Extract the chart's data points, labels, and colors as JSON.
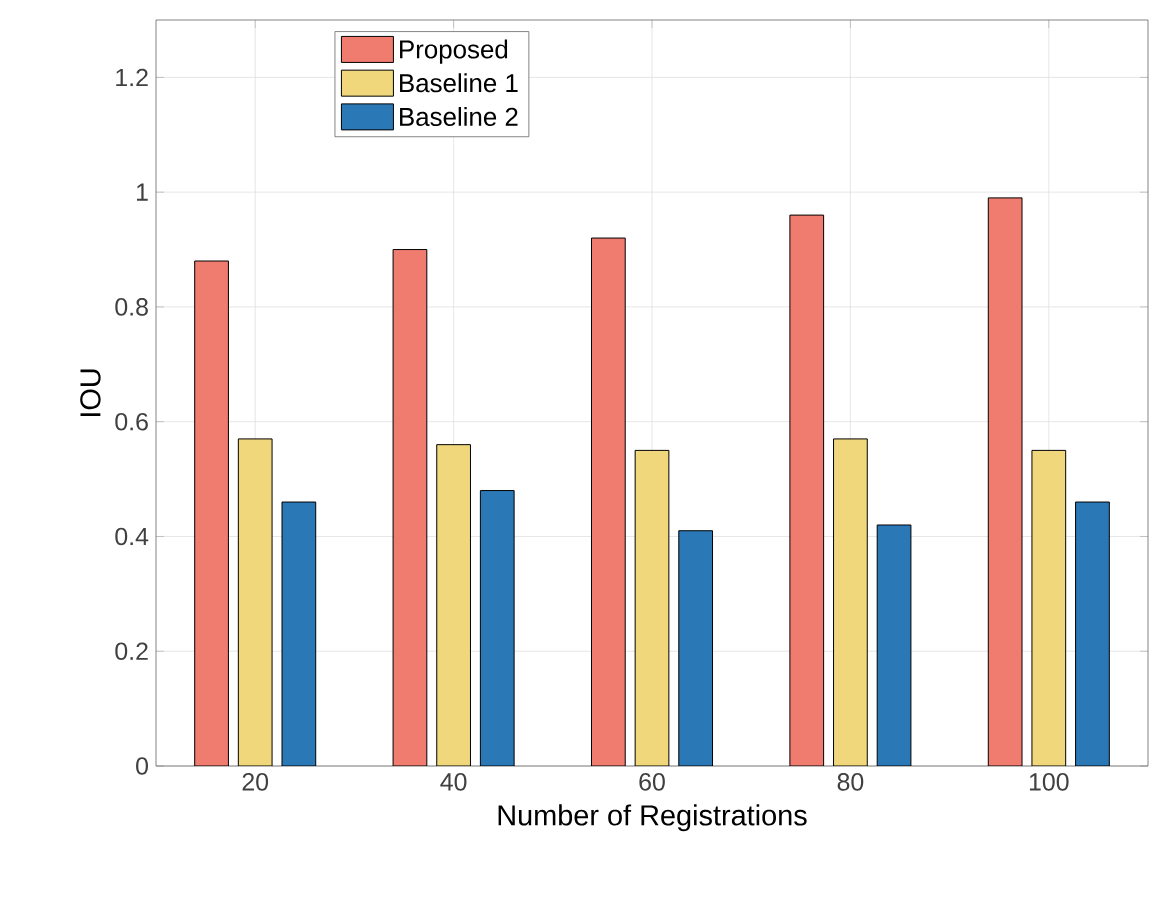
{
  "chart_data": {
    "type": "bar",
    "xlabel": "Number of Registrations",
    "ylabel": "IOU",
    "categories": [
      "20",
      "40",
      "60",
      "80",
      "100"
    ],
    "series": [
      {
        "name": "Proposed",
        "color": "#f07b6f",
        "values": [
          0.88,
          0.9,
          0.92,
          0.96,
          0.99
        ]
      },
      {
        "name": "Baseline 1",
        "color": "#f0d77b",
        "values": [
          0.57,
          0.56,
          0.55,
          0.57,
          0.55
        ]
      },
      {
        "name": "Baseline 2",
        "color": "#2b78b6",
        "values": [
          0.46,
          0.48,
          0.41,
          0.42,
          0.46
        ]
      }
    ],
    "ylim": [
      0,
      1.3
    ],
    "yticks": [
      0,
      0.2,
      0.4,
      0.6,
      0.8,
      1,
      1.2
    ],
    "grid": true,
    "legend": "top left"
  }
}
